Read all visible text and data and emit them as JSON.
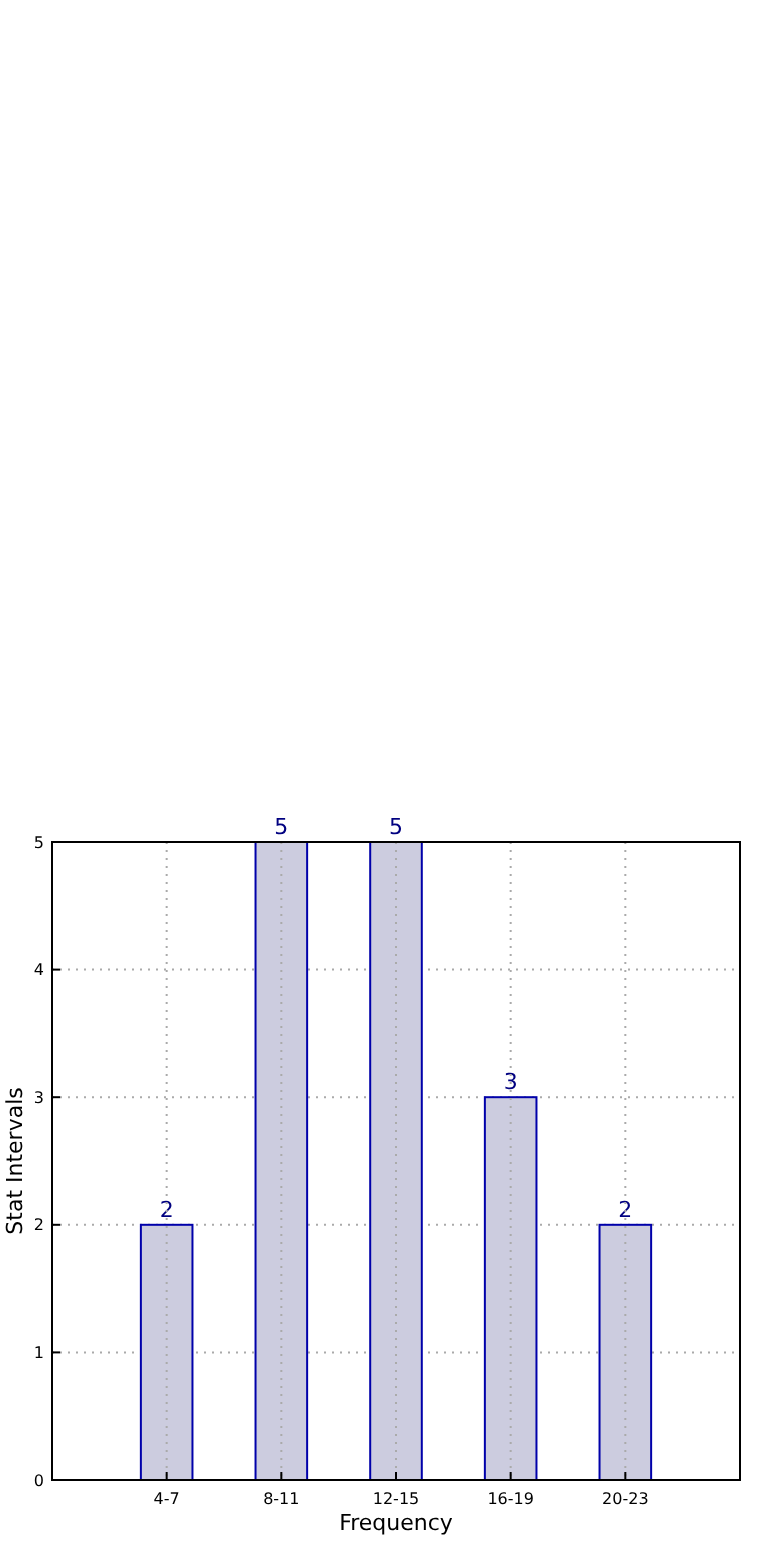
{
  "chart_data": {
    "type": "bar",
    "xlabel": "Frequency",
    "ylabel": "Stat Intervals",
    "categories": [
      "4-7",
      "8-11",
      "12-15",
      "16-19",
      "20-23"
    ],
    "values": [
      2,
      5,
      5,
      3,
      2
    ],
    "color": "#ccccdf",
    "ylim": [
      0,
      5
    ],
    "yticks": [
      0,
      1,
      2,
      3,
      4,
      5
    ],
    "grid": true,
    "data_labels": true
  }
}
